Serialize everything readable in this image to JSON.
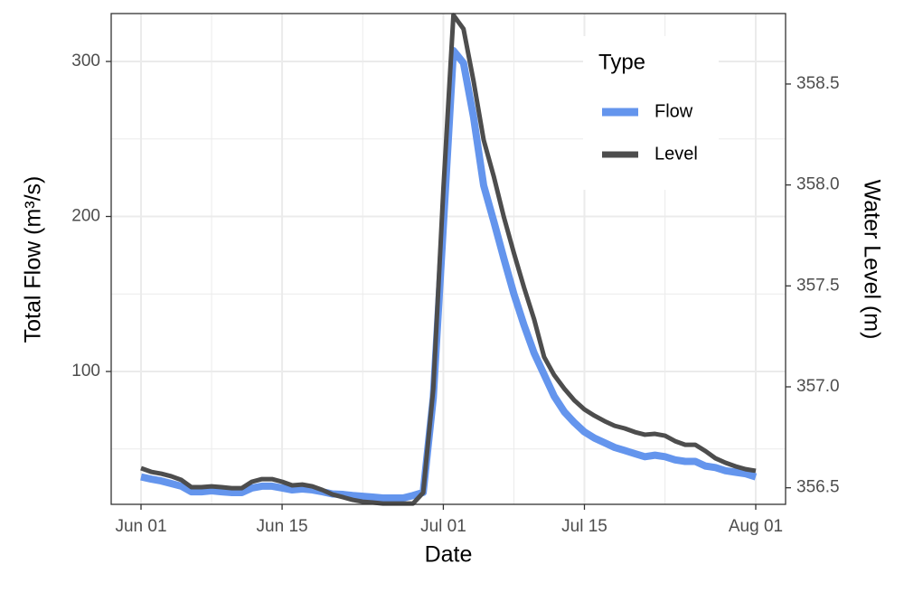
{
  "chart_data": {
    "type": "line",
    "x_label": "Date",
    "y_label": "Total Flow (m³/s)",
    "y2_label": "Water Level (m)",
    "legend_title": "Type",
    "legend_position": "top-right",
    "grid": true,
    "categories": [
      "Jun 01",
      "Jun 02",
      "Jun 03",
      "Jun 04",
      "Jun 05",
      "Jun 06",
      "Jun 07",
      "Jun 08",
      "Jun 09",
      "Jun 10",
      "Jun 11",
      "Jun 12",
      "Jun 13",
      "Jun 14",
      "Jun 15",
      "Jun 16",
      "Jun 17",
      "Jun 18",
      "Jun 19",
      "Jun 20",
      "Jun 21",
      "Jun 22",
      "Jun 23",
      "Jun 24",
      "Jun 25",
      "Jun 26",
      "Jun 27",
      "Jun 28",
      "Jun 29",
      "Jun 30",
      "Jul 01",
      "Jul 02",
      "Jul 03",
      "Jul 04",
      "Jul 05",
      "Jul 06",
      "Jul 07",
      "Jul 08",
      "Jul 09",
      "Jul 10",
      "Jul 11",
      "Jul 12",
      "Jul 13",
      "Jul 14",
      "Jul 15",
      "Jul 16",
      "Jul 17",
      "Jul 18",
      "Jul 19",
      "Jul 20",
      "Jul 21",
      "Jul 22",
      "Jul 23",
      "Jul 24",
      "Jul 25",
      "Jul 26",
      "Jul 27",
      "Jul 28",
      "Jul 29",
      "Jul 30",
      "Jul 31",
      "Aug 01"
    ],
    "xticks": [
      "Jun 01",
      "Jun 15",
      "Jul 01",
      "Jul 15",
      "Aug 01"
    ],
    "minor_xticks": [
      "Jun 08",
      "Jun 23",
      "Jul 08",
      "Jul 23"
    ],
    "ylim": [
      14.3,
      330.9
    ],
    "yticks": [
      100,
      200,
      300
    ],
    "minor_yticks": [
      50,
      150,
      250
    ],
    "y2lim": [
      356.418,
      358.849
    ],
    "y2ticks": [
      356.5,
      {
        "value": 357,
        "label": "357.0"
      },
      357.5,
      {
        "value": 358,
        "label": "358.0"
      },
      358.5
    ],
    "series": [
      {
        "name": "Flow",
        "color": "#6495ed",
        "values": [
          32,
          30.6,
          29.4,
          27.7,
          26,
          22.4,
          22.4,
          23,
          22.4,
          21.9,
          21.9,
          24.8,
          26,
          26,
          24.8,
          23.6,
          24.2,
          23.6,
          22.4,
          21,
          20.7,
          20,
          19.5,
          19,
          18.4,
          18.4,
          18.4,
          20,
          22,
          83,
          194,
          307,
          299,
          264,
          220,
          197,
          173,
          150,
          130,
          112,
          98,
          84,
          74,
          67,
          61,
          57,
          54,
          51,
          49,
          47,
          45,
          46,
          45,
          43,
          42,
          42,
          39,
          38,
          36,
          35,
          34,
          32
        ]
      },
      {
        "name": "Level",
        "color": "#4d4d4d",
        "axis": "y2",
        "values": [
          356.597,
          356.579,
          356.57,
          356.557,
          356.539,
          356.503,
          356.503,
          356.507,
          356.503,
          356.498,
          356.498,
          356.53,
          356.543,
          356.543,
          356.53,
          356.512,
          356.516,
          356.507,
          356.489,
          356.467,
          356.454,
          356.44,
          356.431,
          356.427,
          356.422,
          356.422,
          356.422,
          356.422,
          356.476,
          356.99,
          357.976,
          358.841,
          358.773,
          358.514,
          358.223,
          358.043,
          357.842,
          357.663,
          357.493,
          357.336,
          357.148,
          357.058,
          356.991,
          356.933,
          356.888,
          356.857,
          356.83,
          356.807,
          356.794,
          356.776,
          356.763,
          356.767,
          356.758,
          356.731,
          356.713,
          356.713,
          356.682,
          356.646,
          356.624,
          356.606,
          356.592,
          356.584
        ]
      }
    ]
  }
}
